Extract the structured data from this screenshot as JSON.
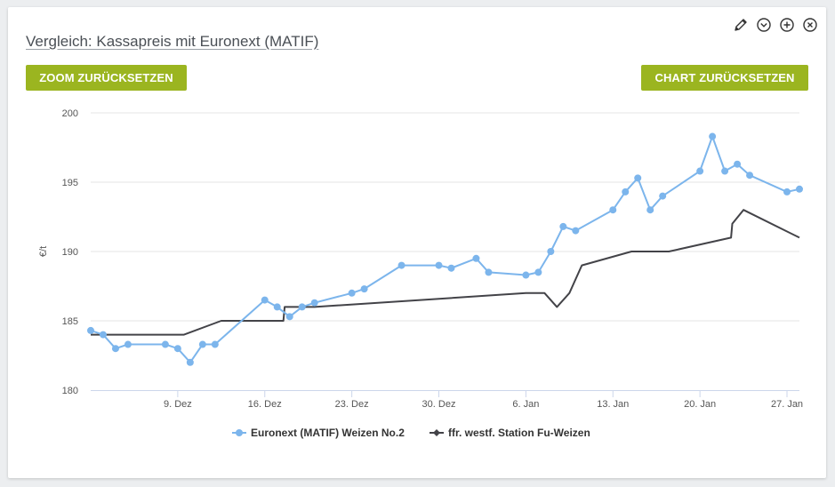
{
  "panel": {
    "title": "Vergleich: Kassapreis mit Euronext (MATIF)",
    "zoom_reset_label": "ZOOM ZURÜCKSETZEN",
    "chart_reset_label": "CHART ZURÜCKSETZEN",
    "tool_icons": [
      "pencil-icon",
      "chevron-down-circle-icon",
      "plus-circle-icon",
      "close-circle-icon"
    ]
  },
  "colors": {
    "button": "#9bb520",
    "series1": "#7cb5ec",
    "series2": "#434348",
    "grid": "#e6e6e6"
  },
  "chart_data": {
    "type": "line",
    "title": "",
    "xlabel": "",
    "ylabel": "€/t",
    "ylim": [
      180,
      200
    ],
    "yticks": [
      180,
      185,
      190,
      195,
      200
    ],
    "xlim": [
      "2023-12-02",
      "2024-01-28"
    ],
    "xticks": [
      {
        "date": "2023-12-09",
        "label": "9. Dez"
      },
      {
        "date": "2023-12-16",
        "label": "16. Dez"
      },
      {
        "date": "2023-12-23",
        "label": "23. Dez"
      },
      {
        "date": "2023-12-30",
        "label": "30. Dez"
      },
      {
        "date": "2024-01-06",
        "label": "6. Jan"
      },
      {
        "date": "2024-01-13",
        "label": "13. Jan"
      },
      {
        "date": "2024-01-20",
        "label": "20. Jan"
      },
      {
        "date": "2024-01-27",
        "label": "27. Jan"
      }
    ],
    "grid": true,
    "legend": "bottom-center",
    "series": [
      {
        "name": "Euronext (MATIF) Weizen No.2",
        "color": "#7cb5ec",
        "marker": "circle",
        "points": [
          [
            "2023-12-02",
            184.3
          ],
          [
            "2023-12-03",
            184.0
          ],
          [
            "2023-12-04",
            183.0
          ],
          [
            "2023-12-05",
            183.3
          ],
          [
            "2023-12-08",
            183.3
          ],
          [
            "2023-12-09",
            183.0
          ],
          [
            "2023-12-10",
            182.0
          ],
          [
            "2023-12-11",
            183.3
          ],
          [
            "2023-12-12",
            183.3
          ],
          [
            "2023-12-16",
            186.5
          ],
          [
            "2023-12-17",
            186.0
          ],
          [
            "2023-12-18",
            185.3
          ],
          [
            "2023-12-19",
            186.0
          ],
          [
            "2023-12-20",
            186.3
          ],
          [
            "2023-12-23",
            187.0
          ],
          [
            "2023-12-24",
            187.3
          ],
          [
            "2023-12-27",
            189.0
          ],
          [
            "2023-12-30",
            189.0
          ],
          [
            "2023-12-31",
            188.8
          ],
          [
            "2024-01-02",
            189.5
          ],
          [
            "2024-01-03",
            188.5
          ],
          [
            "2024-01-06",
            188.3
          ],
          [
            "2024-01-07",
            188.5
          ],
          [
            "2024-01-08",
            190.0
          ],
          [
            "2024-01-09",
            191.8
          ],
          [
            "2024-01-10",
            191.5
          ],
          [
            "2024-01-13",
            193.0
          ],
          [
            "2024-01-14",
            194.3
          ],
          [
            "2024-01-15",
            195.3
          ],
          [
            "2024-01-16",
            193.0
          ],
          [
            "2024-01-17",
            194.0
          ],
          [
            "2024-01-20",
            195.8
          ],
          [
            "2024-01-21",
            198.3
          ],
          [
            "2024-01-22",
            195.8
          ],
          [
            "2024-01-23",
            196.3
          ],
          [
            "2024-01-24",
            195.5
          ],
          [
            "2024-01-27",
            194.3
          ],
          [
            "2024-01-28",
            194.5
          ]
        ]
      },
      {
        "name": "ffr. westf. Station Fu-Weizen",
        "color": "#434348",
        "marker": "diamond",
        "points": [
          [
            "2023-12-02",
            184.0
          ],
          [
            "2023-12-09.5",
            184.0
          ],
          [
            "2023-12-12.5",
            185.0
          ],
          [
            "2023-12-17.5",
            185.0
          ],
          [
            "2023-12-17.6",
            186.0
          ],
          [
            "2023-12-20",
            186.0
          ],
          [
            "2024-01-06",
            187.0
          ],
          [
            "2024-01-07.5",
            187.0
          ],
          [
            "2024-01-08.5",
            186.0
          ],
          [
            "2024-01-09.5",
            187.0
          ],
          [
            "2024-01-10.5",
            189.0
          ],
          [
            "2024-01-14.5",
            190.0
          ],
          [
            "2024-01-17.5",
            190.0
          ],
          [
            "2024-01-22.5",
            191.0
          ],
          [
            "2024-01-22.6",
            192.0
          ],
          [
            "2024-01-23.5",
            193.0
          ],
          [
            "2024-01-28",
            191.0
          ]
        ]
      }
    ]
  }
}
